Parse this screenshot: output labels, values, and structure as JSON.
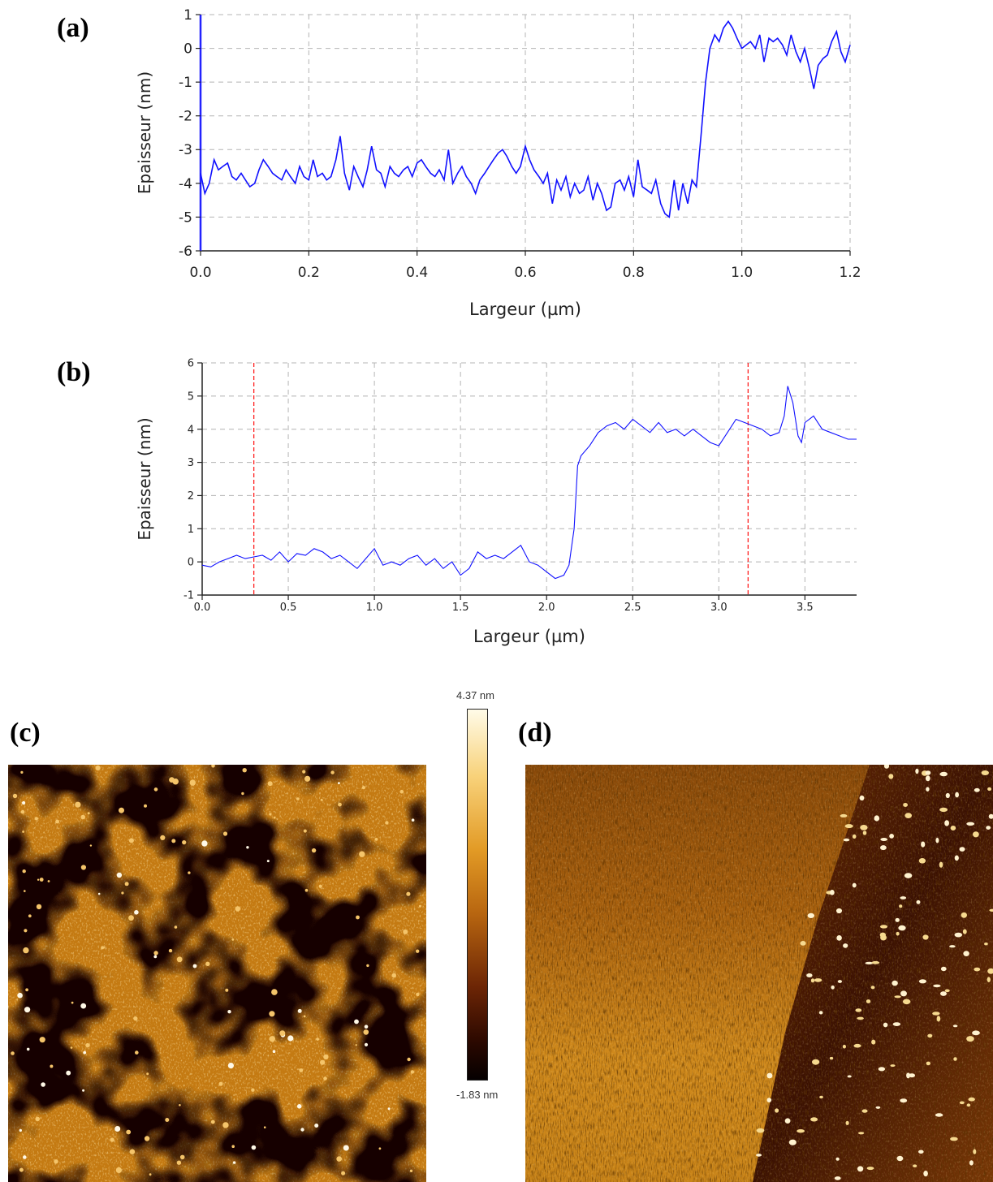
{
  "panels": {
    "a": "(a)",
    "b": "(b)",
    "c": "(c)",
    "d": "(d)"
  },
  "colors": {
    "line": "#1010ff",
    "axis_left": "#2222ff",
    "grid": "#b4b4b4",
    "marker": "#ff2020",
    "afm_dark": "#1a0500",
    "afm_mid": "#c27a10",
    "afm_light": "#fff6dc"
  },
  "colorbar": {
    "max_label": "4.37 nm",
    "min_label": "-1.83 nm"
  },
  "chart_data": [
    {
      "id": "a",
      "type": "line",
      "xlabel": "Largeur (µm)",
      "ylabel": "Epaisseur (nm)",
      "xlim": [
        0,
        1.2
      ],
      "ylim": [
        -6,
        1
      ],
      "xticks": [
        "0.0",
        "0.2",
        "0.4",
        "0.6",
        "0.8",
        "1.0",
        "1.2"
      ],
      "xtick_values": [
        0,
        0.2,
        0.4,
        0.6,
        0.8,
        1.0,
        1.2
      ],
      "yticks": [
        "1",
        "0",
        "-1",
        "-2",
        "-3",
        "-4",
        "-5",
        "-6"
      ],
      "ytick_values": [
        1,
        0,
        -1,
        -2,
        -3,
        -4,
        -5,
        -6
      ],
      "grid": true,
      "series": [
        {
          "x": [
            0.0,
            0.008,
            0.016,
            0.025,
            0.033,
            0.041,
            0.05,
            0.058,
            0.066,
            0.075,
            0.083,
            0.091,
            0.1,
            0.108,
            0.116,
            0.125,
            0.133,
            0.141,
            0.15,
            0.158,
            0.166,
            0.175,
            0.183,
            0.191,
            0.2,
            0.208,
            0.216,
            0.225,
            0.233,
            0.241,
            0.25,
            0.258,
            0.266,
            0.275,
            0.283,
            0.291,
            0.3,
            0.308,
            0.316,
            0.325,
            0.333,
            0.341,
            0.35,
            0.358,
            0.366,
            0.375,
            0.383,
            0.391,
            0.4,
            0.408,
            0.416,
            0.425,
            0.433,
            0.441,
            0.45,
            0.458,
            0.466,
            0.475,
            0.483,
            0.491,
            0.5,
            0.508,
            0.516,
            0.525,
            0.533,
            0.541,
            0.55,
            0.558,
            0.566,
            0.575,
            0.583,
            0.591,
            0.6,
            0.608,
            0.616,
            0.625,
            0.633,
            0.641,
            0.65,
            0.658,
            0.666,
            0.675,
            0.683,
            0.691,
            0.7,
            0.708,
            0.716,
            0.725,
            0.733,
            0.741,
            0.75,
            0.758,
            0.766,
            0.775,
            0.783,
            0.791,
            0.8,
            0.808,
            0.816,
            0.825,
            0.833,
            0.841,
            0.85,
            0.858,
            0.866,
            0.875,
            0.883,
            0.891,
            0.9,
            0.908,
            0.916,
            0.925,
            0.933,
            0.941,
            0.95,
            0.958,
            0.966,
            0.975,
            0.983,
            0.991,
            1.0,
            1.008,
            1.016,
            1.025,
            1.033,
            1.041,
            1.05,
            1.058,
            1.066,
            1.075,
            1.083,
            1.091,
            1.1,
            1.108,
            1.116,
            1.125,
            1.133,
            1.141,
            1.15,
            1.158,
            1.166,
            1.175,
            1.183,
            1.191,
            1.2
          ],
          "y": [
            -3.7,
            -4.3,
            -4.0,
            -3.3,
            -3.6,
            -3.5,
            -3.4,
            -3.8,
            -3.9,
            -3.7,
            -3.9,
            -4.1,
            -4.0,
            -3.6,
            -3.3,
            -3.5,
            -3.7,
            -3.8,
            -3.9,
            -3.6,
            -3.8,
            -4.0,
            -3.5,
            -3.8,
            -3.9,
            -3.3,
            -3.8,
            -3.7,
            -3.9,
            -3.8,
            -3.3,
            -2.6,
            -3.7,
            -4.2,
            -3.5,
            -3.8,
            -4.1,
            -3.6,
            -2.9,
            -3.6,
            -3.7,
            -4.1,
            -3.5,
            -3.7,
            -3.8,
            -3.6,
            -3.5,
            -3.8,
            -3.4,
            -3.3,
            -3.5,
            -3.7,
            -3.8,
            -3.6,
            -3.9,
            -3.0,
            -4.0,
            -3.7,
            -3.5,
            -3.8,
            -4.0,
            -4.3,
            -3.9,
            -3.7,
            -3.5,
            -3.3,
            -3.1,
            -3.0,
            -3.2,
            -3.5,
            -3.7,
            -3.5,
            -2.9,
            -3.3,
            -3.6,
            -3.8,
            -4.0,
            -3.7,
            -4.6,
            -3.9,
            -4.2,
            -3.8,
            -4.4,
            -4.0,
            -4.3,
            -4.2,
            -3.8,
            -4.5,
            -4.0,
            -4.3,
            -4.8,
            -4.7,
            -4.0,
            -3.9,
            -4.2,
            -3.8,
            -4.4,
            -3.3,
            -4.1,
            -4.2,
            -4.3,
            -3.9,
            -4.6,
            -4.9,
            -5.0,
            -3.9,
            -4.8,
            -4.0,
            -4.6,
            -3.9,
            -4.1,
            -2.5,
            -1.0,
            0.0,
            0.4,
            0.2,
            0.6,
            0.8,
            0.6,
            0.3,
            0.0,
            0.1,
            0.2,
            0.0,
            0.4,
            -0.4,
            0.3,
            0.2,
            0.3,
            0.1,
            -0.2,
            0.4,
            -0.1,
            -0.4,
            0.0,
            -0.6,
            -1.2,
            -0.5,
            -0.3,
            -0.2,
            0.2,
            0.5,
            -0.1,
            -0.4,
            0.1
          ]
        }
      ]
    },
    {
      "id": "b",
      "type": "line",
      "xlabel": "Largeur (µm)",
      "ylabel": "Epaisseur (nm)",
      "xlim": [
        0,
        3.8
      ],
      "ylim": [
        -1,
        6
      ],
      "xticks": [
        "0.0",
        "0.5",
        "1.0",
        "1.5",
        "2.0",
        "2.5",
        "3.0",
        "3.5"
      ],
      "xtick_values": [
        0,
        0.5,
        1.0,
        1.5,
        2.0,
        2.5,
        3.0,
        3.5
      ],
      "yticks": [
        "6",
        "5",
        "4",
        "3",
        "2",
        "1",
        "0",
        "-1"
      ],
      "ytick_values": [
        6,
        5,
        4,
        3,
        2,
        1,
        0,
        -1
      ],
      "grid": true,
      "markers": [
        0.3,
        3.17
      ],
      "series": [
        {
          "x": [
            0.0,
            0.05,
            0.1,
            0.15,
            0.2,
            0.25,
            0.3,
            0.35,
            0.4,
            0.45,
            0.5,
            0.55,
            0.6,
            0.65,
            0.7,
            0.75,
            0.8,
            0.85,
            0.9,
            0.95,
            1.0,
            1.05,
            1.1,
            1.15,
            1.2,
            1.25,
            1.3,
            1.35,
            1.4,
            1.45,
            1.5,
            1.55,
            1.6,
            1.65,
            1.7,
            1.75,
            1.8,
            1.85,
            1.9,
            1.95,
            2.0,
            2.05,
            2.1,
            2.13,
            2.16,
            2.18,
            2.2,
            2.25,
            2.3,
            2.35,
            2.4,
            2.45,
            2.5,
            2.55,
            2.6,
            2.65,
            2.7,
            2.75,
            2.8,
            2.85,
            2.9,
            2.95,
            3.0,
            3.05,
            3.1,
            3.15,
            3.2,
            3.25,
            3.3,
            3.35,
            3.38,
            3.4,
            3.43,
            3.46,
            3.48,
            3.5,
            3.55,
            3.6,
            3.65,
            3.7,
            3.75,
            3.8
          ],
          "y": [
            -0.1,
            -0.15,
            0.0,
            0.1,
            0.2,
            0.1,
            0.15,
            0.2,
            0.05,
            0.3,
            0.0,
            0.25,
            0.2,
            0.4,
            0.3,
            0.1,
            0.2,
            0.0,
            -0.2,
            0.1,
            0.4,
            -0.1,
            0.0,
            -0.1,
            0.1,
            0.2,
            -0.1,
            0.1,
            -0.2,
            0.0,
            -0.4,
            -0.2,
            0.3,
            0.1,
            0.2,
            0.1,
            0.3,
            0.5,
            0.0,
            -0.1,
            -0.3,
            -0.5,
            -0.4,
            -0.1,
            1.0,
            2.9,
            3.2,
            3.5,
            3.9,
            4.1,
            4.2,
            4.0,
            4.3,
            4.1,
            3.9,
            4.2,
            3.9,
            4.0,
            3.8,
            4.0,
            3.8,
            3.6,
            3.5,
            3.9,
            4.3,
            4.2,
            4.1,
            4.0,
            3.8,
            3.9,
            4.4,
            5.3,
            4.8,
            3.8,
            3.6,
            4.2,
            4.4,
            4.0,
            3.9,
            3.8,
            3.7,
            3.7
          ]
        }
      ]
    }
  ]
}
